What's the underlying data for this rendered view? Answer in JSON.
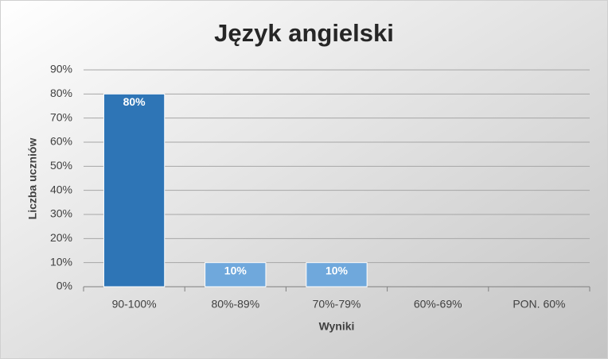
{
  "chart_data": {
    "type": "bar",
    "title": "Język angielski",
    "x_label": "Wyniki",
    "y_label": "Liczba uczniów",
    "categories": [
      "90-100%",
      "80%-89%",
      "70%-79%",
      "60%-69%",
      "PON. 60%"
    ],
    "values": [
      80,
      10,
      10,
      0,
      0
    ],
    "value_labels": [
      "80%",
      "10%",
      "10%",
      null,
      null
    ],
    "colors": [
      "#2e75b6",
      "#6fa8dc",
      "#6fa8dc",
      "#6fa8dc",
      "#6fa8dc"
    ],
    "ylim": [
      0,
      90
    ],
    "yticks": [
      {
        "value": 0,
        "label": "0%"
      },
      {
        "value": 10,
        "label": "10%"
      },
      {
        "value": 20,
        "label": "20%"
      },
      {
        "value": 30,
        "label": "30%"
      },
      {
        "value": 40,
        "label": "40%"
      },
      {
        "value": 50,
        "label": "50%"
      },
      {
        "value": 60,
        "label": "60%"
      },
      {
        "value": 70,
        "label": "70%"
      },
      {
        "value": 80,
        "label": "80%"
      },
      {
        "value": 90,
        "label": "90%"
      }
    ],
    "grid": true
  }
}
